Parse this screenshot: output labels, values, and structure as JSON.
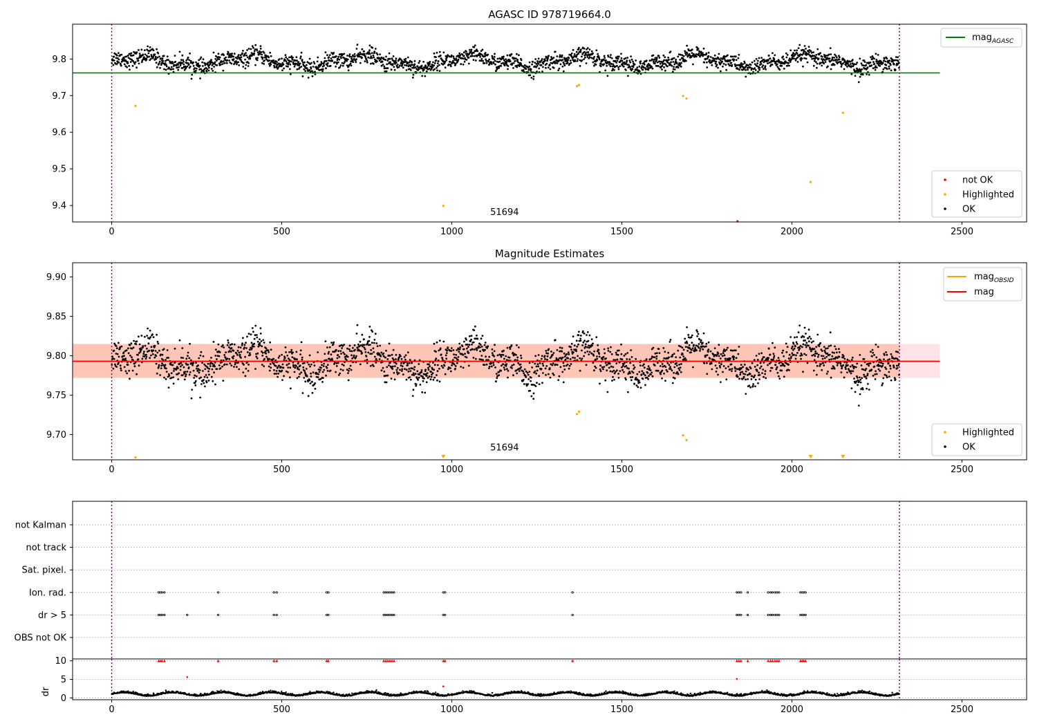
{
  "chart_data": [
    {
      "type": "scatter",
      "title": "AGASC ID 978719664.0",
      "xlim": [
        -115,
        2690
      ],
      "ylim": [
        9.355,
        9.895
      ],
      "xticks": [
        0,
        500,
        1000,
        1500,
        2000,
        2500
      ],
      "yticks": [
        9.4,
        9.5,
        9.6,
        9.7,
        9.8
      ],
      "vlines": [
        0,
        2316
      ],
      "annotation": {
        "text": "51694",
        "x": 1155,
        "y": 9.37
      },
      "lines": [
        {
          "name": "mag_{AGASC}",
          "color": "#008000",
          "x": [
            -115,
            2435
          ],
          "y": [
            9.762,
            9.762
          ]
        }
      ],
      "series": [
        {
          "name": "not OK",
          "color": "#ff0000",
          "points": [
            [
              1840,
              9.357
            ]
          ]
        },
        {
          "name": "Highlighted",
          "color": "#ffa500",
          "points": [
            [
              70,
              9.672
            ],
            [
              975,
              9.399
            ],
            [
              1368,
              9.726
            ],
            [
              1374,
              9.729
            ],
            [
              1680,
              9.699
            ],
            [
              1690,
              9.692
            ],
            [
              2055,
              9.464
            ],
            [
              2150,
              9.653
            ]
          ]
        },
        {
          "name": "OK",
          "color": "#000000",
          "description": "about 2300 observations, mag 9.74–9.85"
        }
      ],
      "legends": [
        {
          "position": "upper right",
          "entries": [
            "mag_{AGASC}"
          ]
        },
        {
          "position": "lower right",
          "entries": [
            "not OK",
            "Highlighted",
            "OK"
          ]
        }
      ]
    },
    {
      "type": "scatter",
      "title": "Magnitude Estimates",
      "xlim": [
        -115,
        2690
      ],
      "ylim": [
        9.668,
        9.918
      ],
      "xticks": [
        0,
        500,
        1000,
        1500,
        2000,
        2500
      ],
      "yticks": [
        9.7,
        9.75,
        9.8,
        9.85,
        9.9
      ],
      "vlines": [
        0,
        2316
      ],
      "annotation": {
        "text": "51694",
        "x": 1155,
        "y": 9.678
      },
      "lines": [
        {
          "name": "mag_{OBSID}",
          "color": "#ffa500",
          "x": [
            -115,
            2316
          ],
          "y": [
            9.793,
            9.793
          ]
        },
        {
          "name": "mag",
          "color": "#ff0000",
          "x": [
            -115,
            2435
          ],
          "y": [
            9.793,
            9.793
          ]
        }
      ],
      "bands": [
        {
          "color": "#ffc0cb",
          "x": [
            -115,
            2435
          ],
          "y": [
            9.772,
            9.815
          ]
        },
        {
          "color": "#ffa07a",
          "x": [
            -115,
            2316
          ],
          "y": [
            9.772,
            9.815
          ]
        }
      ],
      "series": [
        {
          "name": "Highlighted",
          "color": "#ffa500",
          "points": [
            [
              70,
              9.671
            ],
            [
              1368,
              9.726
            ],
            [
              1374,
              9.729
            ],
            [
              1680,
              9.699
            ],
            [
              1690,
              9.693
            ]
          ]
        },
        {
          "name": "OK",
          "color": "#000000",
          "description": "same observations as above, mag 9.73–9.85"
        }
      ],
      "off_scale_markers": {
        "color": "#ffa500",
        "x": [
          975,
          2055,
          2150
        ]
      },
      "legends": [
        {
          "position": "upper right",
          "entries": [
            "mag_{OBSID}",
            "mag"
          ]
        },
        {
          "position": "lower right",
          "entries": [
            "Highlighted",
            "OK"
          ]
        }
      ]
    },
    {
      "type": "scatter",
      "description": "observation flags",
      "xlim": [
        -115,
        2690
      ],
      "categories": [
        "not Kalman",
        "not track",
        "Sat. pixel.",
        "Ion. rad.",
        "dr > 5",
        "OBS not OK"
      ],
      "vlines": [
        0,
        2316
      ],
      "flagged_x": [
        138,
        143,
        148,
        155,
        222,
        313,
        477,
        485,
        632,
        637,
        800,
        806,
        812,
        818,
        824,
        830,
        975,
        980,
        1355,
        1838,
        1844,
        1850,
        1870,
        1930,
        1937,
        1943,
        1950,
        1956,
        1962,
        2025,
        2030,
        2035,
        2040
      ],
      "flags": {
        "Ion. rad.": [
          138,
          143,
          148,
          155,
          313,
          477,
          485,
          632,
          637,
          800,
          806,
          812,
          818,
          824,
          830,
          975,
          980,
          1355,
          1838,
          1844,
          1850,
          1870,
          1930,
          1937,
          1943,
          1950,
          1956,
          1962,
          2025,
          2030,
          2035,
          2040
        ],
        "dr > 5": [
          138,
          143,
          148,
          155,
          222,
          313,
          477,
          485,
          632,
          637,
          800,
          806,
          812,
          818,
          824,
          830,
          975,
          980,
          1355,
          1838,
          1844,
          1850,
          1870,
          1930,
          1937,
          1943,
          1950,
          1956,
          1962,
          2025,
          2030,
          2035,
          2040
        ]
      }
    },
    {
      "type": "scatter",
      "ylabel": "dr",
      "xlim": [
        -115,
        2690
      ],
      "ylim": [
        -0.5,
        10.5
      ],
      "xticks": [
        0,
        500,
        1000,
        1500,
        2000,
        2500
      ],
      "yticks": [
        0,
        5,
        10
      ],
      "vlines": [
        0,
        2316
      ],
      "series": [
        {
          "name": "OK",
          "color": "#000000",
          "description": "dr mostly 0.3–2"
        },
        {
          "name": "not OK",
          "color": "#ff0000",
          "points": [
            [
              222,
              5.6
            ],
            [
              975,
              3.1
            ],
            [
              1838,
              5.1
            ]
          ],
          "clipped_at_10_x": [
            138,
            143,
            148,
            155,
            313,
            477,
            485,
            632,
            637,
            800,
            806,
            812,
            818,
            824,
            830,
            975,
            980,
            1355,
            1838,
            1844,
            1850,
            1870,
            1930,
            1937,
            1943,
            1950,
            1956,
            1962,
            2025,
            2030,
            2035,
            2040
          ]
        }
      ]
    }
  ],
  "colors": {
    "purple": "#800080",
    "grid": "#b0b0b0"
  }
}
